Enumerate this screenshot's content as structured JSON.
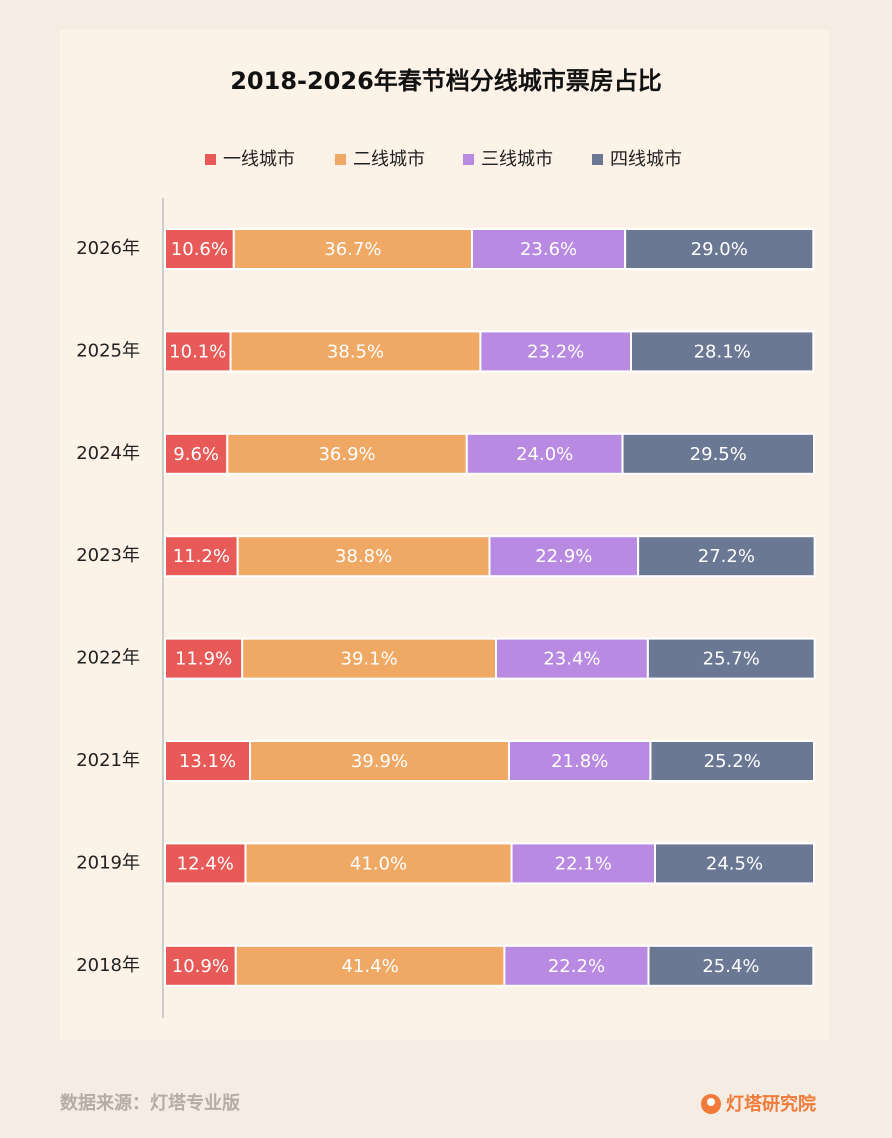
{
  "chart_data": {
    "type": "stacked_barh",
    "title": "2018-2026年春节档分线城市票房占比",
    "categories": [
      "2026年",
      "2025年",
      "2024年",
      "2023年",
      "2022年",
      "2021年",
      "2019年",
      "2018年"
    ],
    "series": [
      {
        "name": "一线城市",
        "color": "#e85a58",
        "values": [
          10.6,
          10.1,
          9.6,
          11.2,
          11.9,
          13.1,
          12.4,
          10.9
        ],
        "value_labels": [
          "10.6%",
          "10.1%",
          "9.6%",
          "11.2%",
          "11.9%",
          "13.1%",
          "12.4%",
          "10.9%"
        ]
      },
      {
        "name": "二线城市",
        "color": "#f0a865",
        "values": [
          36.7,
          38.5,
          36.9,
          38.8,
          39.1,
          39.9,
          41.0,
          41.4
        ],
        "value_labels": [
          "36.7%",
          "38.5%",
          "36.9%",
          "38.8%",
          "39.1%",
          "39.9%",
          "41.0%",
          "41.4%"
        ]
      },
      {
        "name": "三线城市",
        "color": "#b88ae2",
        "values": [
          23.6,
          23.2,
          24.0,
          22.9,
          23.4,
          21.8,
          22.1,
          22.2
        ],
        "value_labels": [
          "23.6%",
          "23.2%",
          "24.0%",
          "22.9%",
          "23.4%",
          "21.8%",
          "22.1%",
          "22.2%"
        ]
      },
      {
        "name": "四线城市",
        "color": "#6b7894",
        "values": [
          29.0,
          28.1,
          29.5,
          27.2,
          25.7,
          25.2,
          24.5,
          25.4
        ],
        "value_labels": [
          "29.0%",
          "28.1%",
          "29.5%",
          "27.2%",
          "25.7%",
          "25.2%",
          "24.5%",
          "25.4%"
        ]
      }
    ],
    "source": "数据来源：灯塔专业版",
    "brand": "灯塔研究院"
  }
}
